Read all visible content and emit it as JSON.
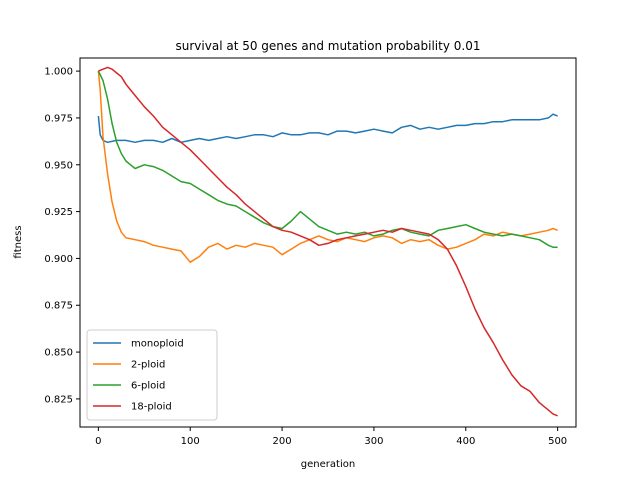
{
  "chart_data": {
    "type": "line",
    "title": "survival at 50 genes and mutation probability 0.01",
    "xlabel": "generation",
    "ylabel": "fitness",
    "xlim": [
      -20,
      520
    ],
    "ylim": [
      0.81,
      1.007
    ],
    "xticks": [
      0,
      100,
      200,
      300,
      400,
      500
    ],
    "yticks": [
      0.825,
      0.85,
      0.875,
      0.9,
      0.925,
      0.95,
      0.975,
      1.0
    ],
    "xtick_labels": [
      "0",
      "100",
      "200",
      "300",
      "400",
      "500"
    ],
    "ytick_labels": [
      "0.825",
      "0.850",
      "0.875",
      "0.900",
      "0.925",
      "0.950",
      "0.975",
      "1.000"
    ],
    "grid": false,
    "legend_position": "lower-left",
    "series": [
      {
        "name": "monoploid",
        "color": "#1f77b4",
        "x": [
          0,
          2,
          5,
          10,
          20,
          30,
          40,
          50,
          60,
          70,
          80,
          90,
          100,
          110,
          120,
          130,
          140,
          150,
          160,
          170,
          180,
          190,
          200,
          210,
          220,
          230,
          240,
          250,
          260,
          270,
          280,
          290,
          300,
          310,
          320,
          330,
          340,
          350,
          360,
          370,
          380,
          390,
          400,
          410,
          420,
          430,
          440,
          450,
          460,
          470,
          480,
          490,
          495,
          500
        ],
        "y": [
          0.976,
          0.966,
          0.963,
          0.962,
          0.963,
          0.963,
          0.962,
          0.963,
          0.963,
          0.962,
          0.964,
          0.962,
          0.963,
          0.964,
          0.963,
          0.964,
          0.965,
          0.964,
          0.965,
          0.966,
          0.966,
          0.965,
          0.967,
          0.966,
          0.966,
          0.967,
          0.967,
          0.966,
          0.968,
          0.968,
          0.967,
          0.968,
          0.969,
          0.968,
          0.967,
          0.97,
          0.971,
          0.969,
          0.97,
          0.969,
          0.97,
          0.971,
          0.971,
          0.972,
          0.972,
          0.973,
          0.973,
          0.974,
          0.974,
          0.974,
          0.974,
          0.975,
          0.977,
          0.976
        ]
      },
      {
        "name": "2-ploid",
        "color": "#ff7f0e",
        "x": [
          0,
          2,
          5,
          10,
          15,
          20,
          25,
          30,
          40,
          50,
          60,
          70,
          80,
          90,
          100,
          110,
          120,
          130,
          140,
          150,
          160,
          170,
          180,
          190,
          200,
          210,
          220,
          230,
          240,
          250,
          260,
          270,
          280,
          290,
          300,
          310,
          320,
          330,
          340,
          350,
          360,
          370,
          380,
          390,
          400,
          410,
          420,
          430,
          440,
          450,
          460,
          470,
          480,
          490,
          495,
          500
        ],
        "y": [
          1.0,
          0.99,
          0.965,
          0.945,
          0.93,
          0.92,
          0.914,
          0.911,
          0.91,
          0.909,
          0.907,
          0.906,
          0.905,
          0.904,
          0.898,
          0.901,
          0.906,
          0.908,
          0.905,
          0.907,
          0.906,
          0.908,
          0.907,
          0.906,
          0.902,
          0.905,
          0.908,
          0.91,
          0.912,
          0.91,
          0.909,
          0.911,
          0.91,
          0.909,
          0.911,
          0.912,
          0.911,
          0.908,
          0.91,
          0.909,
          0.91,
          0.907,
          0.905,
          0.906,
          0.908,
          0.91,
          0.913,
          0.912,
          0.914,
          0.913,
          0.912,
          0.913,
          0.914,
          0.915,
          0.916,
          0.915
        ]
      },
      {
        "name": "6-ploid",
        "color": "#2ca02c",
        "x": [
          0,
          5,
          10,
          15,
          20,
          25,
          30,
          35,
          40,
          50,
          60,
          70,
          80,
          90,
          100,
          110,
          120,
          130,
          140,
          150,
          160,
          170,
          180,
          190,
          200,
          210,
          220,
          230,
          240,
          250,
          260,
          270,
          280,
          290,
          300,
          310,
          320,
          330,
          340,
          350,
          360,
          370,
          380,
          390,
          400,
          410,
          420,
          430,
          440,
          450,
          460,
          470,
          480,
          490,
          495,
          500
        ],
        "y": [
          1.0,
          0.995,
          0.985,
          0.972,
          0.962,
          0.956,
          0.952,
          0.95,
          0.948,
          0.95,
          0.949,
          0.947,
          0.944,
          0.941,
          0.94,
          0.937,
          0.934,
          0.931,
          0.929,
          0.928,
          0.925,
          0.922,
          0.919,
          0.917,
          0.916,
          0.92,
          0.925,
          0.921,
          0.917,
          0.915,
          0.913,
          0.914,
          0.913,
          0.914,
          0.912,
          0.913,
          0.915,
          0.916,
          0.914,
          0.913,
          0.912,
          0.915,
          0.916,
          0.917,
          0.918,
          0.916,
          0.914,
          0.913,
          0.912,
          0.913,
          0.912,
          0.911,
          0.91,
          0.907,
          0.906,
          0.906
        ]
      },
      {
        "name": "18-ploid",
        "color": "#d62728",
        "x": [
          0,
          5,
          10,
          15,
          20,
          25,
          30,
          40,
          50,
          60,
          70,
          80,
          90,
          100,
          110,
          120,
          130,
          140,
          150,
          160,
          170,
          180,
          190,
          200,
          210,
          220,
          230,
          240,
          250,
          260,
          270,
          280,
          290,
          300,
          310,
          320,
          330,
          340,
          350,
          360,
          370,
          380,
          390,
          400,
          410,
          420,
          430,
          440,
          450,
          460,
          470,
          480,
          490,
          495,
          500
        ],
        "y": [
          1.0,
          1.001,
          1.002,
          1.001,
          0.999,
          0.997,
          0.993,
          0.987,
          0.981,
          0.976,
          0.97,
          0.966,
          0.962,
          0.958,
          0.953,
          0.948,
          0.943,
          0.938,
          0.934,
          0.929,
          0.925,
          0.921,
          0.917,
          0.915,
          0.914,
          0.912,
          0.91,
          0.907,
          0.908,
          0.91,
          0.911,
          0.912,
          0.913,
          0.914,
          0.915,
          0.914,
          0.916,
          0.915,
          0.914,
          0.913,
          0.91,
          0.905,
          0.896,
          0.885,
          0.873,
          0.863,
          0.855,
          0.846,
          0.838,
          0.832,
          0.829,
          0.823,
          0.819,
          0.817,
          0.816
        ]
      }
    ]
  }
}
